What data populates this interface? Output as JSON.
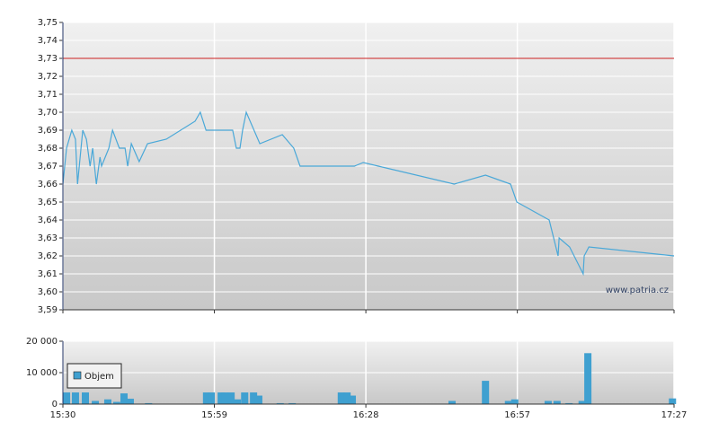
{
  "chart_data": [
    {
      "type": "line",
      "xlim": [
        930,
        1047
      ],
      "ylim": [
        3.59,
        3.75
      ],
      "yticks": [
        {
          "value": 3.59,
          "label": "3,59"
        },
        {
          "value": 3.6,
          "label": "3,60"
        },
        {
          "value": 3.61,
          "label": "3,61"
        },
        {
          "value": 3.62,
          "label": "3,62"
        },
        {
          "value": 3.63,
          "label": "3,63"
        },
        {
          "value": 3.64,
          "label": "3,64"
        },
        {
          "value": 3.65,
          "label": "3,65"
        },
        {
          "value": 3.66,
          "label": "3,66"
        },
        {
          "value": 3.67,
          "label": "3,67"
        },
        {
          "value": 3.68,
          "label": "3,68"
        },
        {
          "value": 3.69,
          "label": "3,69"
        },
        {
          "value": 3.7,
          "label": "3,70"
        },
        {
          "value": 3.71,
          "label": "3,71"
        },
        {
          "value": 3.72,
          "label": "3,72"
        },
        {
          "value": 3.73,
          "label": "3,73"
        },
        {
          "value": 3.74,
          "label": "3,74"
        },
        {
          "value": 3.75,
          "label": "3,75"
        }
      ],
      "grid": true,
      "reference_line": {
        "value": 3.73,
        "color": "#cc2222"
      },
      "annotation": "www.patria.cz",
      "series": [
        {
          "color": "#4aa8d8",
          "x": [
            930,
            930.7,
            931.7,
            932.4,
            932.8,
            933.8,
            934.5,
            935.2,
            935.7,
            936.4,
            937.1,
            937.4,
            938.1,
            938.8,
            939.5,
            940.8,
            941.9,
            942.4,
            943.1,
            944.6,
            946.2,
            949.8,
            955.3,
            956.3,
            957.4,
            962.5,
            963.2,
            963.9,
            964.4,
            965.1,
            967.7,
            972,
            974.2,
            975.4,
            985.8,
            987.5,
            1004.9,
            1010.9,
            1015.7,
            1016.9,
            1023.1,
            1024.8,
            1025,
            1027,
            1029.6,
            1029.8,
            1030.7,
            1047
          ],
          "values": [
            3.66,
            3.68,
            3.69,
            3.685,
            3.66,
            3.69,
            3.685,
            3.67,
            3.68,
            3.66,
            3.675,
            3.67,
            3.675,
            3.68,
            3.69,
            3.68,
            3.68,
            3.67,
            3.6825,
            3.6725,
            3.6825,
            3.685,
            3.695,
            3.7,
            3.69,
            3.69,
            3.68,
            3.68,
            3.69,
            3.7,
            3.6825,
            3.6875,
            3.68,
            3.67,
            3.67,
            3.672,
            3.66,
            3.665,
            3.66,
            3.65,
            3.64,
            3.62,
            3.63,
            3.625,
            3.61,
            3.62,
            3.625,
            3.62
          ]
        }
      ]
    },
    {
      "type": "bar",
      "xlim": [
        930,
        1047
      ],
      "ylim": [
        0,
        20000
      ],
      "xticks": [
        {
          "value": 930,
          "label": "15:30"
        },
        {
          "value": 959,
          "label": "15:59"
        },
        {
          "value": 988,
          "label": "16:28"
        },
        {
          "value": 1017,
          "label": "16:57"
        },
        {
          "value": 1047,
          "label": "17:27"
        }
      ],
      "yticks": [
        0,
        {
          "value": 10000,
          "label": "10 000"
        },
        {
          "value": 20000,
          "label": "20 000"
        }
      ],
      "grid": true,
      "legend": "left",
      "series": [
        {
          "name": "Objem",
          "color": "#3fa0d0",
          "x": [
            930.7,
            932.4,
            934.3,
            936.2,
            938.6,
            940.3,
            941.7,
            942.9,
            946.4,
            957.5,
            958.4,
            960.3,
            961,
            962.2,
            963.4,
            964.8,
            966.5,
            967.5,
            971.6,
            973.9,
            983.3,
            984.4,
            985.4,
            1004.5,
            1010.9,
            1015.3,
            1016.5,
            1022.9,
            1024.6,
            1026.9,
            1029.4,
            1030.5,
            1046.7
          ],
          "values": [
            3700,
            3700,
            3700,
            1000,
            1500,
            700,
            3400,
            1700,
            300,
            3700,
            3700,
            3700,
            3700,
            3700,
            1500,
            3700,
            3700,
            2700,
            300,
            300,
            3700,
            3700,
            2700,
            1000,
            7400,
            1000,
            1500,
            1000,
            1000,
            300,
            1000,
            16200,
            1800
          ]
        }
      ]
    }
  ]
}
